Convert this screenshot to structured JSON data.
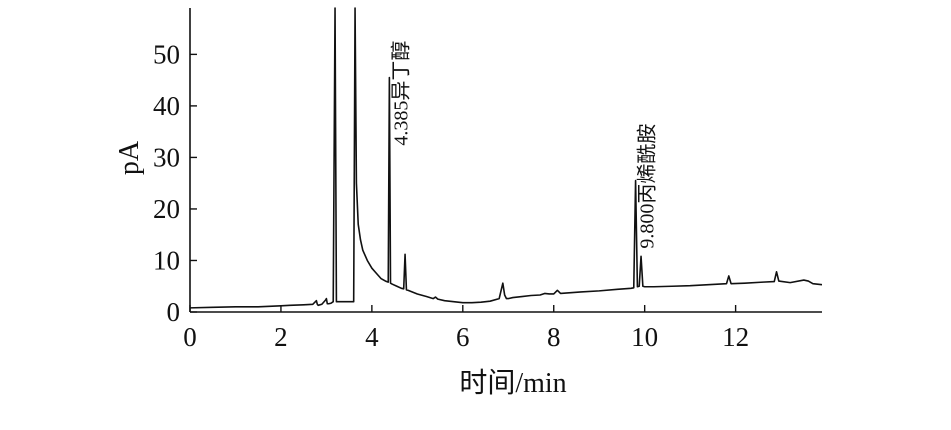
{
  "chart_data": {
    "type": "line",
    "title": "",
    "xlabel": "时间/min",
    "ylabel": "pA",
    "xlim": [
      0,
      13.9
    ],
    "ylim": [
      0,
      59
    ],
    "xticks": [
      0,
      2,
      4,
      6,
      8,
      10,
      12
    ],
    "yticks": [
      0,
      10,
      20,
      30,
      40,
      50
    ],
    "grid": false,
    "legend": "none",
    "color": "#111111",
    "annotations": [
      {
        "x": 4.385,
        "y": 45.5,
        "text": "4.385异丁醇"
      },
      {
        "x": 9.8,
        "y": 25.5,
        "text": "9.800丙烯酰胺"
      }
    ],
    "series": [
      {
        "x": [
          0.0,
          0.5,
          1.0,
          1.5,
          2.0,
          2.2,
          2.5,
          2.7,
          2.78,
          2.8,
          2.82,
          2.9,
          2.98,
          3.0,
          3.02,
          3.05,
          3.1,
          3.15,
          3.19,
          3.22,
          3.3,
          3.6,
          3.63,
          3.66,
          3.7,
          3.75,
          3.8,
          3.9,
          4.0,
          4.1,
          4.2,
          4.3,
          4.36,
          4.385,
          4.41,
          4.45,
          4.55,
          4.65,
          4.7,
          4.73,
          4.76,
          4.8,
          5.0,
          5.2,
          5.35,
          5.4,
          5.45,
          5.6,
          5.8,
          6.0,
          6.2,
          6.4,
          6.6,
          6.8,
          6.88,
          6.92,
          6.96,
          7.0,
          7.1,
          7.3,
          7.5,
          7.7,
          7.8,
          7.9,
          8.0,
          8.08,
          8.15,
          8.3,
          8.6,
          9.0,
          9.4,
          9.7,
          9.76,
          9.8,
          9.84,
          9.88,
          9.92,
          9.96,
          10.0,
          10.2,
          10.6,
          11.0,
          11.4,
          11.8,
          11.85,
          11.9,
          12.2,
          12.6,
          12.85,
          12.9,
          12.95,
          13.2,
          13.5,
          13.6,
          13.7,
          13.8,
          13.9
        ],
        "y": [
          0.8,
          0.9,
          1.0,
          1.0,
          1.2,
          1.3,
          1.4,
          1.5,
          2.2,
          1.5,
          1.3,
          1.5,
          2.3,
          2.6,
          1.6,
          1.6,
          1.7,
          2.0,
          59,
          2.0,
          2.0,
          2.0,
          59,
          25,
          17,
          14,
          12,
          10,
          8.5,
          7.5,
          6.5,
          6.0,
          5.8,
          45.5,
          5.6,
          5.4,
          5.0,
          4.6,
          4.5,
          11.2,
          4.3,
          4.2,
          3.5,
          3.0,
          2.6,
          2.9,
          2.5,
          2.2,
          2.0,
          1.8,
          1.8,
          1.9,
          2.1,
          2.6,
          5.6,
          3.3,
          2.6,
          2.6,
          2.8,
          3.0,
          3.2,
          3.3,
          3.6,
          3.5,
          3.5,
          4.2,
          3.6,
          3.7,
          3.9,
          4.1,
          4.4,
          4.6,
          4.7,
          25.5,
          4.9,
          5.0,
          10.8,
          5.0,
          4.9,
          4.9,
          5.0,
          5.1,
          5.3,
          5.5,
          7.0,
          5.5,
          5.6,
          5.8,
          5.9,
          7.8,
          6.0,
          5.7,
          6.2,
          6.0,
          5.5,
          5.4,
          5.3
        ]
      }
    ]
  }
}
